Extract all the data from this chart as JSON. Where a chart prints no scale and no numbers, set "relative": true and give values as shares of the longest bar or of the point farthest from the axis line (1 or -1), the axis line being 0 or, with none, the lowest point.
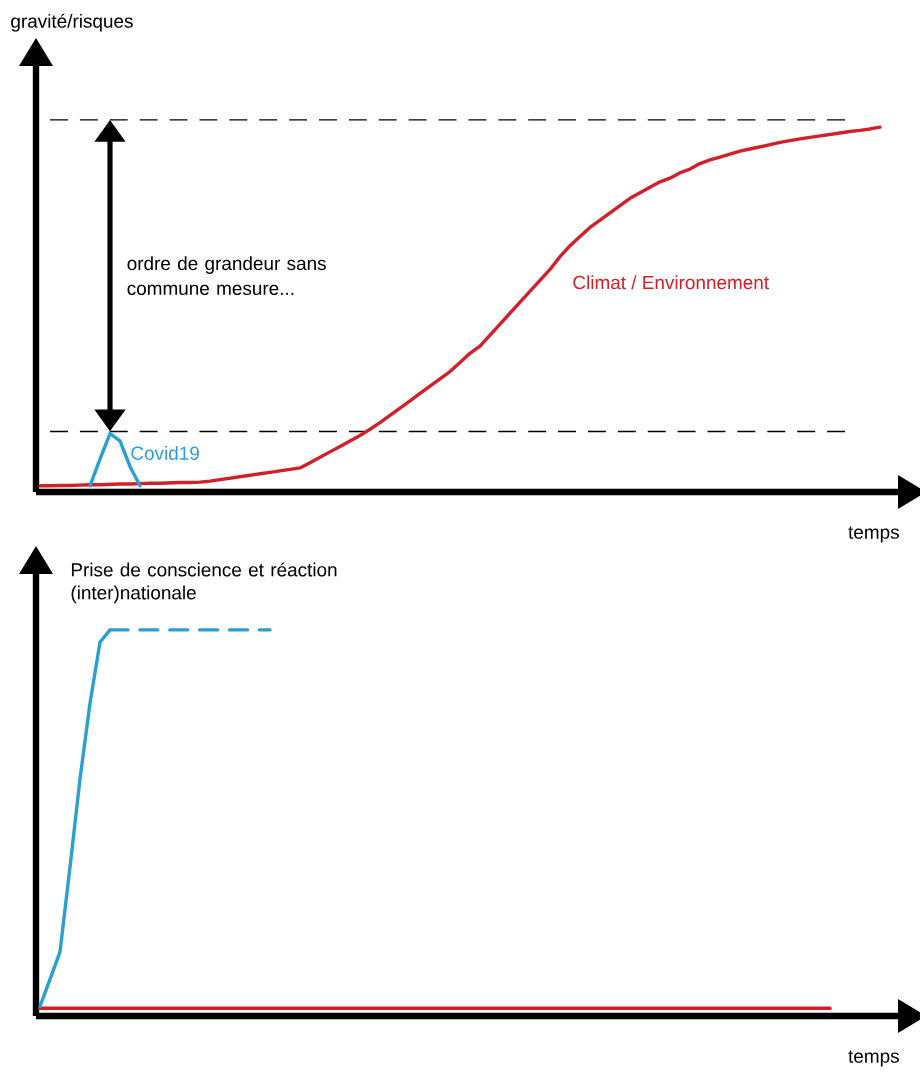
{
  "chart_data": [
    {
      "type": "line",
      "relative": true,
      "xlabel": "temps",
      "ylabel": "gravité/risques",
      "categories": [
        null,
        null,
        null,
        null,
        null,
        null,
        null,
        null,
        null,
        null,
        null,
        null,
        null,
        null,
        null,
        null,
        null,
        null,
        null,
        null,
        null,
        null,
        null,
        null,
        null,
        null,
        null,
        null,
        null,
        null,
        null,
        null,
        null,
        null,
        null,
        null,
        null,
        null,
        null,
        null,
        null,
        null,
        null,
        null,
        null,
        null,
        null,
        null,
        null,
        null,
        null,
        null,
        null,
        null,
        null,
        null,
        null,
        null,
        null,
        null,
        null,
        null,
        null,
        null,
        null,
        null,
        null,
        null,
        null,
        null,
        null,
        null,
        null,
        null,
        null,
        null,
        null,
        null,
        null,
        null,
        null,
        null,
        null,
        null,
        null
      ],
      "series": [
        {
          "name": "Climat / Environnement",
          "color": "#d0202a",
          "values": [
            0.017,
            0.017,
            0.018,
            0.018,
            0.019,
            0.02,
            0.02,
            0.021,
            0.022,
            0.022,
            0.023,
            0.024,
            0.024,
            0.025,
            0.026,
            0.026,
            0.027,
            0.03,
            0.034,
            0.038,
            0.042,
            0.046,
            0.05,
            0.054,
            0.058,
            0.062,
            0.066,
            0.08,
            0.095,
            0.11,
            0.125,
            0.14,
            0.155,
            0.172,
            0.19,
            0.21,
            0.23,
            0.25,
            0.27,
            0.29,
            0.31,
            0.33,
            0.355,
            0.38,
            0.4,
            0.43,
            0.46,
            0.49,
            0.52,
            0.55,
            0.58,
            0.61,
            0.645,
            0.675,
            0.7,
            0.725,
            0.745,
            0.765,
            0.785,
            0.805,
            0.82,
            0.835,
            0.85,
            0.86,
            0.875,
            0.885,
            0.9,
            0.91,
            0.918,
            0.926,
            0.934,
            0.94,
            0.946,
            0.952,
            0.958,
            0.963,
            0.968,
            0.972,
            0.976,
            0.98,
            0.984,
            0.988,
            0.991,
            0.995,
            1
          ]
        },
        {
          "name": "Covid19",
          "color": "#2a9fd0",
          "values": [
            null,
            null,
            null,
            null,
            null,
            0.017,
            0.09,
            0.16,
            0.14,
            0.07,
            0.017,
            null,
            null,
            null,
            null,
            null,
            null,
            null,
            null,
            null,
            null,
            null,
            null,
            null,
            null,
            null,
            null,
            null,
            null,
            null,
            null,
            null,
            null,
            null,
            null,
            null,
            null,
            null,
            null,
            null,
            null,
            null,
            null,
            null,
            null,
            null,
            null,
            null,
            null,
            null,
            null,
            null,
            null,
            null,
            null,
            null,
            null,
            null,
            null,
            null,
            null,
            null,
            null,
            null,
            null,
            null,
            null,
            null,
            null,
            null,
            null,
            null,
            null,
            null,
            null,
            null,
            null,
            null,
            null,
            null,
            null,
            null,
            null,
            null,
            null
          ]
        }
      ],
      "ref_lines": [
        {
          "axis": "y",
          "value": 1.02,
          "color": "#000000",
          "line_style": "dashed"
        },
        {
          "axis": "y",
          "value": 0.166,
          "color": "#000000",
          "line_style": "dashed"
        }
      ],
      "annotations": [
        "ordre de grandeur sans commune mesure..."
      ]
    },
    {
      "type": "line",
      "relative": true,
      "xlabel": "temps",
      "ylabel": "Prise de conscience et réaction (inter)nationale",
      "categories": [
        null,
        null,
        null,
        null,
        null,
        null,
        null,
        null,
        null,
        null,
        null,
        null,
        null,
        null,
        null,
        null,
        null,
        null,
        null,
        null,
        null,
        null,
        null,
        null,
        null,
        null,
        null,
        null,
        null,
        null,
        null,
        null,
        null,
        null,
        null,
        null,
        null,
        null,
        null,
        null,
        null,
        null,
        null,
        null,
        null,
        null,
        null,
        null,
        null,
        null,
        null,
        null,
        null,
        null,
        null,
        null,
        null,
        null,
        null,
        null,
        null,
        null,
        null,
        null,
        null,
        null,
        null,
        null,
        null,
        null,
        null,
        null,
        null,
        null,
        null,
        null,
        null,
        null,
        null,
        null,
        null,
        null,
        null,
        null,
        null
      ],
      "series": [
        {
          "color": "#d0202a",
          "values": [
            0.02,
            0.02,
            0.02,
            0.02,
            0.02,
            0.02,
            0.02,
            0.02,
            0.02,
            0.02,
            0.02,
            0.02,
            0.02,
            0.02,
            0.02,
            0.02,
            0.02,
            0.02,
            0.02,
            0.02,
            0.02,
            0.02,
            0.02,
            0.02,
            0.02,
            0.02,
            0.02,
            0.02,
            0.02,
            0.02,
            0.02,
            0.02,
            0.02,
            0.02,
            0.02,
            0.02,
            0.02,
            0.02,
            0.02,
            0.02,
            0.02,
            0.02,
            0.02,
            0.02,
            0.02,
            0.02,
            0.02,
            0.02,
            0.02,
            0.02,
            0.02,
            0.02,
            0.02,
            0.02,
            0.02,
            0.02,
            0.02,
            0.02,
            0.02,
            0.02,
            0.02,
            0.02,
            0.02,
            0.02,
            0.02,
            0.02,
            0.02,
            0.02,
            0.02,
            0.02,
            0.02,
            0.02,
            0.02,
            0.02,
            0.02,
            0.02,
            0.02,
            0.02,
            0.02,
            0.02,
            null,
            null,
            null,
            null,
            null
          ]
        },
        {
          "color": "#2a9fd0",
          "values": [
            0.025,
            0.095,
            0.166,
            0.386,
            0.614,
            0.81,
            0.968,
            1,
            null,
            null,
            null,
            null,
            null,
            null,
            null,
            null,
            null,
            null,
            null,
            null,
            null,
            null,
            null,
            null,
            null,
            null,
            null,
            null,
            null,
            null,
            null,
            null,
            null,
            null,
            null,
            null,
            null,
            null,
            null,
            null,
            null,
            null,
            null,
            null,
            null,
            null,
            null,
            null,
            null,
            null,
            null,
            null,
            null,
            null,
            null,
            null,
            null,
            null,
            null,
            null,
            null,
            null,
            null,
            null,
            null,
            null,
            null,
            null,
            null,
            null,
            null,
            null,
            null,
            null,
            null,
            null,
            null,
            null,
            null,
            null,
            null,
            null,
            null,
            null,
            null
          ]
        },
        {
          "color": "#2a9fd0",
          "line_style": "dashed",
          "values": [
            null,
            null,
            null,
            null,
            null,
            null,
            null,
            1,
            1,
            1,
            1,
            1,
            1,
            1,
            1,
            1,
            1,
            1,
            1,
            1,
            1,
            1,
            1,
            1,
            null,
            null,
            null,
            null,
            null,
            null,
            null,
            null,
            null,
            null,
            null,
            null,
            null,
            null,
            null,
            null,
            null,
            null,
            null,
            null,
            null,
            null,
            null,
            null,
            null,
            null,
            null,
            null,
            null,
            null,
            null,
            null,
            null,
            null,
            null,
            null,
            null,
            null,
            null,
            null,
            null,
            null,
            null,
            null,
            null,
            null,
            null,
            null,
            null,
            null,
            null,
            null,
            null,
            null,
            null,
            null,
            null,
            null,
            null,
            null,
            null
          ]
        }
      ]
    }
  ]
}
